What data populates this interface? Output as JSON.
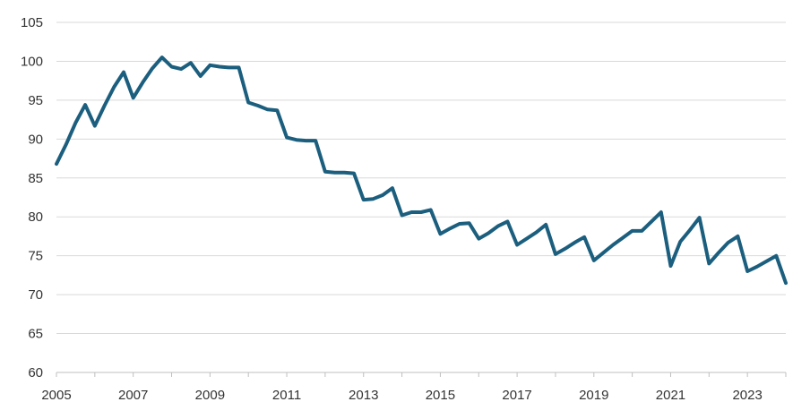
{
  "chart_data": {
    "type": "line",
    "title": "",
    "xlabel": "",
    "ylabel": "",
    "xlim": [
      2005,
      2024
    ],
    "ylim": [
      60,
      105
    ],
    "x_ticks": [
      "2005",
      "2007",
      "2009",
      "2011",
      "2013",
      "2015",
      "2017",
      "2019",
      "2021",
      "2023"
    ],
    "y_ticks": [
      "60",
      "65",
      "70",
      "75",
      "80",
      "85",
      "90",
      "95",
      "100",
      "105"
    ],
    "grid": "horizontal",
    "legend": "none",
    "line_color": "#1b5e7e",
    "series": [
      {
        "x": [
          2005.0,
          2005.25,
          2005.5,
          2005.75,
          2006.0,
          2006.25,
          2006.5,
          2006.75,
          2007.0,
          2007.25,
          2007.5,
          2007.75,
          2008.0,
          2008.25,
          2008.5,
          2008.75,
          2009.0,
          2009.25,
          2009.5,
          2009.75,
          2010.0,
          2010.25,
          2010.5,
          2010.75,
          2011.0,
          2011.25,
          2011.5,
          2011.75,
          2012.0,
          2012.25,
          2012.5,
          2012.75,
          2013.0,
          2013.25,
          2013.5,
          2013.75,
          2014.0,
          2014.25,
          2014.5,
          2014.75,
          2015.0,
          2015.25,
          2015.5,
          2015.75,
          2016.0,
          2016.25,
          2016.5,
          2016.75,
          2017.0,
          2017.25,
          2017.5,
          2017.75,
          2018.0,
          2018.25,
          2018.5,
          2018.75,
          2019.0,
          2019.25,
          2019.5,
          2019.75,
          2020.0,
          2020.25,
          2020.5,
          2020.75,
          2021.0,
          2021.25,
          2021.5,
          2021.75,
          2022.0,
          2022.25,
          2022.5,
          2022.75,
          2023.0,
          2023.25,
          2023.5,
          2023.75,
          2024.0
        ],
        "values": [
          86.8,
          89.3,
          92.1,
          94.4,
          91.7,
          94.3,
          96.7,
          98.6,
          95.3,
          97.3,
          99.1,
          100.5,
          99.3,
          99.0,
          99.8,
          98.1,
          99.5,
          99.3,
          99.2,
          99.2,
          94.7,
          94.3,
          93.8,
          93.7,
          90.2,
          89.9,
          89.8,
          89.8,
          85.8,
          85.7,
          85.7,
          85.6,
          82.2,
          82.3,
          82.8,
          83.7,
          80.2,
          80.6,
          80.6,
          80.9,
          77.8,
          78.5,
          79.1,
          79.2,
          77.2,
          77.9,
          78.8,
          79.4,
          76.4,
          77.2,
          78.0,
          79.0,
          75.2,
          75.9,
          76.7,
          77.4,
          74.4,
          75.4,
          76.4,
          77.3,
          78.2,
          78.2,
          79.4,
          80.6,
          73.7,
          76.8,
          78.3,
          79.9,
          74.0,
          75.4,
          76.7,
          77.5,
          73.0,
          73.6,
          74.3,
          75.0,
          71.5
        ]
      }
    ]
  }
}
